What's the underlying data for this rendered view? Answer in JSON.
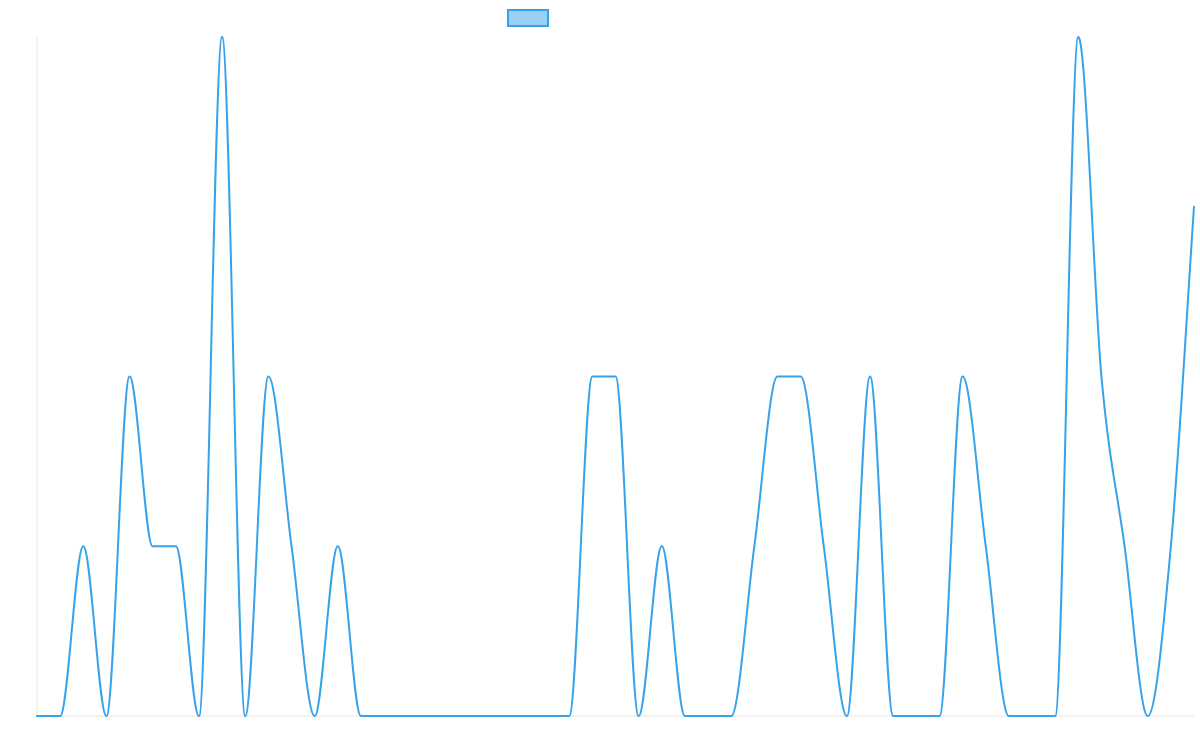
{
  "chart_data": {
    "type": "line",
    "title": "",
    "xlabel": "",
    "ylabel": "",
    "grid": false,
    "legend": "top-center",
    "ylim": [
      0,
      4
    ],
    "x": [
      0,
      1,
      2,
      3,
      4,
      5,
      6,
      7,
      8,
      9,
      10,
      11,
      12,
      13,
      14,
      15,
      16,
      17,
      18,
      19,
      20,
      21,
      22,
      23,
      24,
      25,
      26,
      27,
      28,
      29,
      30,
      31,
      32,
      33,
      34,
      35,
      36,
      37,
      38,
      39,
      40,
      41,
      42,
      43,
      44,
      45,
      46,
      47,
      48,
      49,
      50
    ],
    "series": [
      {
        "name": "",
        "color": "#36a2eb",
        "fill": "#9ad0f5",
        "values": [
          0,
          0,
          1,
          0,
          2,
          1,
          1,
          0,
          4,
          0,
          2,
          1,
          0,
          1,
          0,
          0,
          0,
          0,
          0,
          0,
          0,
          0,
          0,
          0,
          2,
          2,
          0,
          1,
          0,
          0,
          0,
          1,
          2,
          2,
          1,
          0,
          2,
          0,
          0,
          0,
          2,
          1,
          0,
          0,
          0,
          4,
          2,
          1,
          0,
          1,
          3
        ]
      }
    ]
  }
}
